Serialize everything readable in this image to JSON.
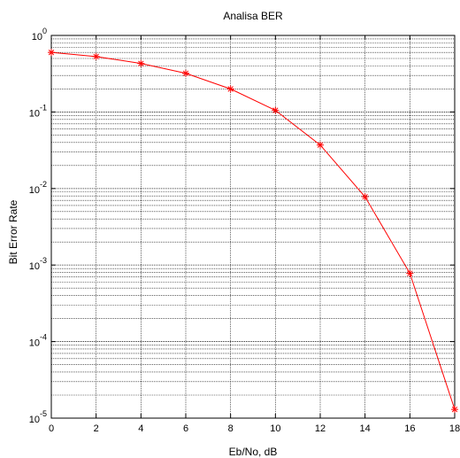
{
  "chart_data": {
    "type": "line",
    "title": "Analisa BER",
    "xlabel": "Eb/No, dB",
    "ylabel": "Bit Error Rate",
    "xscale": "linear",
    "yscale": "log",
    "xlim": [
      0,
      18
    ],
    "ylim": [
      1e-05,
      1
    ],
    "grid": true,
    "x_ticks": [
      "0",
      "2",
      "4",
      "6",
      "8",
      "10",
      "12",
      "14",
      "16",
      "18"
    ],
    "y_ticks": [
      {
        "base": "10",
        "exp": "0"
      },
      {
        "base": "10",
        "exp": "-1"
      },
      {
        "base": "10",
        "exp": "-2"
      },
      {
        "base": "10",
        "exp": "-3"
      },
      {
        "base": "10",
        "exp": "-4"
      },
      {
        "base": "10",
        "exp": "-5"
      }
    ],
    "series": [
      {
        "color": "#ff0000",
        "marker": "star",
        "x": [
          0,
          2,
          4,
          6,
          8,
          10,
          12,
          14,
          16,
          18
        ],
        "y": [
          0.6,
          0.53,
          0.43,
          0.32,
          0.2,
          0.105,
          0.037,
          0.0078,
          0.00078,
          1.3e-05
        ]
      }
    ]
  }
}
